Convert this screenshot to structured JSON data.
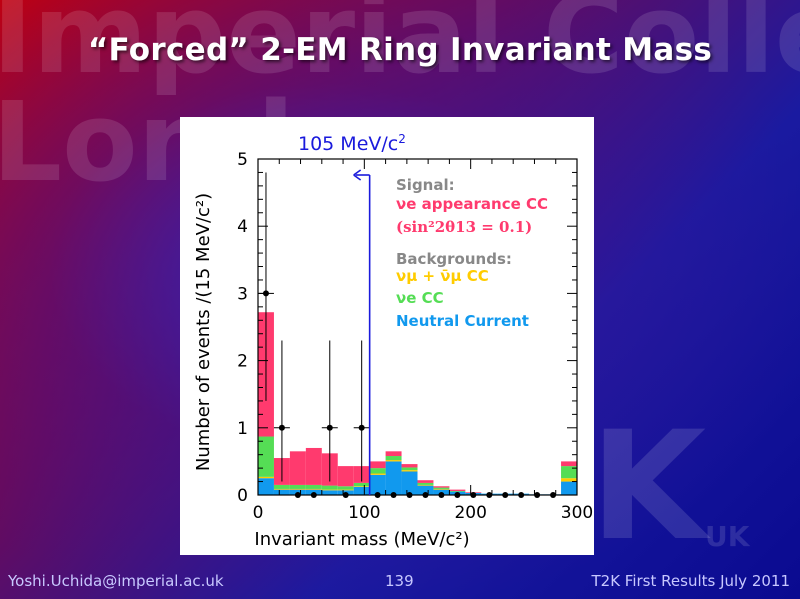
{
  "slide": {
    "title": "“Forced” 2-EM Ring Invariant Mass",
    "watermark_lines": [
      "Imperial College",
      "London"
    ],
    "watermark_logo": "K",
    "watermark_logo_sub": "UK"
  },
  "footer": {
    "email": "Yoshi.Uchida@imperial.ac.uk",
    "page_number": "139",
    "right_text": "T2K First Results July 2011"
  },
  "colors": {
    "signal_nue_appearance": "#ff3a6e",
    "nue_cc": "#55dd55",
    "numu_cc": "#ffcc00",
    "neutral_current": "#1199ee",
    "data": "#000000",
    "cut_line": "#1a1adc",
    "legend_heading": "#888888"
  },
  "chart_data": {
    "type": "bar",
    "stacked": true,
    "xlabel": "Invariant mass (MeV/c²)",
    "ylabel": "Number of events /(15 MeV/c²)",
    "xlim": [
      0,
      300
    ],
    "ylim": [
      0,
      5
    ],
    "x_ticks": [
      0,
      100,
      200,
      300
    ],
    "y_ticks": [
      0,
      1,
      2,
      3,
      4,
      5
    ],
    "bin_width": 15,
    "bin_starts": [
      0,
      15,
      30,
      45,
      60,
      75,
      90,
      105,
      120,
      135,
      150,
      165,
      180,
      195,
      210,
      225,
      240,
      255,
      270,
      285
    ],
    "series": [
      {
        "name": "Neutral Current",
        "key": "neutral_current",
        "values": [
          0.25,
          0.08,
          0.08,
          0.08,
          0.07,
          0.07,
          0.12,
          0.3,
          0.5,
          0.35,
          0.14,
          0.08,
          0.05,
          0.03,
          0.02,
          0.02,
          0.02,
          0.01,
          0.01,
          0.2
        ]
      },
      {
        "name": "νμ + ν̄μ CC",
        "key": "numu_cc",
        "values": [
          0.02,
          0.01,
          0.01,
          0.01,
          0.01,
          0.01,
          0.01,
          0.02,
          0.02,
          0.02,
          0.01,
          0.01,
          0.0,
          0.0,
          0.0,
          0.0,
          0.0,
          0.0,
          0.0,
          0.05
        ]
      },
      {
        "name": "νe CC",
        "key": "nue_cc",
        "values": [
          0.6,
          0.06,
          0.06,
          0.06,
          0.06,
          0.05,
          0.05,
          0.08,
          0.06,
          0.04,
          0.03,
          0.02,
          0.01,
          0.0,
          0.0,
          0.0,
          0.0,
          0.0,
          0.0,
          0.18
        ]
      },
      {
        "name": "νe appearance CC",
        "key": "signal_nue_appearance",
        "values": [
          1.85,
          0.4,
          0.5,
          0.55,
          0.48,
          0.3,
          0.25,
          0.1,
          0.07,
          0.05,
          0.04,
          0.02,
          0.02,
          0.01,
          0.0,
          0.0,
          0.0,
          0.0,
          0.0,
          0.07
        ]
      }
    ],
    "data_points": {
      "name": "Data",
      "x": [
        7.5,
        22.5,
        37.5,
        52.5,
        67.5,
        82.5,
        97.5,
        112.5,
        127.5,
        142.5,
        157.5,
        172.5,
        187.5,
        202.5,
        217.5,
        232.5,
        247.5,
        262.5,
        277.5
      ],
      "y": [
        3,
        1,
        0,
        0,
        1,
        0,
        1,
        0,
        0,
        0,
        0,
        0,
        0,
        0,
        0,
        0,
        0,
        0,
        0
      ],
      "err_up": [
        1.8,
        1.3,
        0,
        0,
        1.3,
        0,
        1.3,
        0,
        0,
        0,
        0,
        0,
        0,
        0,
        0,
        0,
        0,
        0,
        0
      ],
      "err_down": [
        1.6,
        0.8,
        0,
        0,
        0.8,
        0,
        0.8,
        0,
        0,
        0,
        0,
        0,
        0,
        0,
        0,
        0,
        0,
        0,
        0
      ]
    },
    "cut": {
      "x": 105,
      "label_value": "105 MeV/c",
      "label_exp": "2",
      "direction": "left"
    },
    "legend": {
      "placement": "top-right",
      "signal_heading": "Signal:",
      "signal_item": "νe appearance CC",
      "signal_condition": "(sin²2θ13 = 0.1)",
      "background_heading": "Backgrounds:",
      "background_items": [
        "νμ + ν̄μ CC",
        "νe CC",
        "Neutral Current"
      ]
    }
  }
}
